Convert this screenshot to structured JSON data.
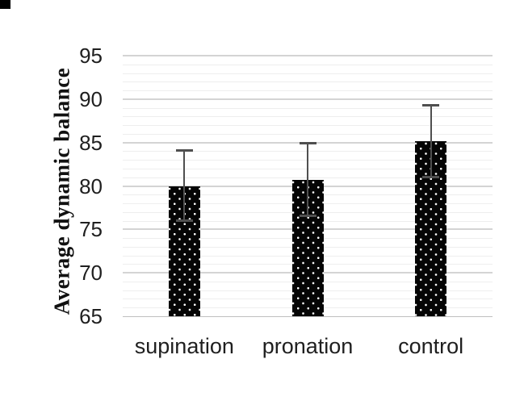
{
  "chart_data": {
    "type": "bar",
    "title": "",
    "xlabel": "",
    "ylabel": "Average dynamic balance",
    "categories": [
      "supination",
      "pronation",
      "control"
    ],
    "values": [
      80.0,
      80.7,
      85.2
    ],
    "error_low": [
      76.0,
      76.6,
      81.0
    ],
    "error_high": [
      84.1,
      84.9,
      89.3
    ],
    "ylim": [
      65,
      95
    ],
    "yticks": [
      65,
      70,
      75,
      80,
      85,
      90,
      95
    ],
    "minor_tick_step": 1,
    "grid": "horizontal major and minor gridlines, no vertical gridlines",
    "legend": "none",
    "bar_pattern": "black fill with small white polka dots",
    "colors": {
      "bar_fill": "#050505",
      "bar_dots": "#ffffff",
      "error_bar": "#4f4f4f",
      "grid_major": "#d4d4d4",
      "grid_minor": "#eeeeee",
      "axis_line": "#bfbfbf",
      "text": "#1f1f1f",
      "background": "#ffffff"
    }
  },
  "decorations": {
    "corner_square": "small black square artifact at top-left of figure"
  }
}
